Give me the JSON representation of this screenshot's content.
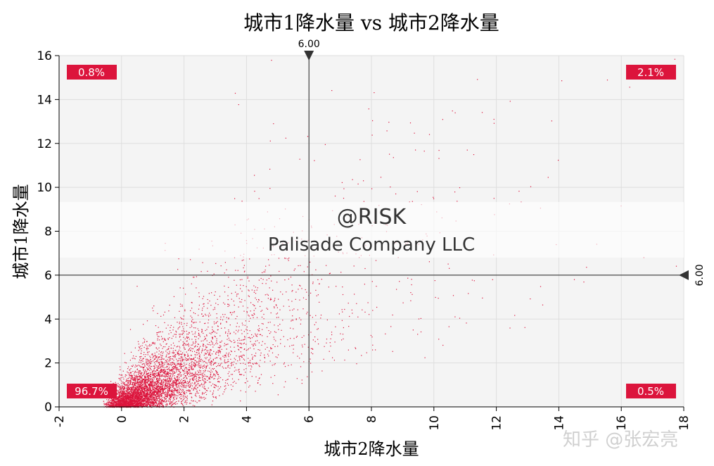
{
  "chart_data": {
    "type": "scatter",
    "title": "城市1降水量 vs 城市2降水量",
    "xlabel": "城市2降水量",
    "ylabel": "城市1降水量",
    "xlim": [
      -2,
      18
    ],
    "ylim": [
      0,
      16
    ],
    "xticks": [
      "-2",
      "0",
      "2",
      "4",
      "6",
      "8",
      "10",
      "12",
      "14",
      "16",
      "18"
    ],
    "yticks": [
      "0",
      "2",
      "4",
      "6",
      "8",
      "10",
      "12",
      "14",
      "16"
    ],
    "grid": true,
    "marker_color": "#dc143c",
    "point_count": 10000,
    "x_marker": {
      "value": 6.0,
      "label": "6.00"
    },
    "y_marker": {
      "value": 6.0,
      "label": "6.00"
    },
    "quadrants": {
      "top_left": "0.8%",
      "top_right": "2.1%",
      "bottom_left": "96.7%",
      "bottom_right": "0.5%"
    },
    "overlay": {
      "line1": "@RISK",
      "line2": "Palisade Company LLC"
    }
  },
  "watermark": "知乎 @张宏亮"
}
